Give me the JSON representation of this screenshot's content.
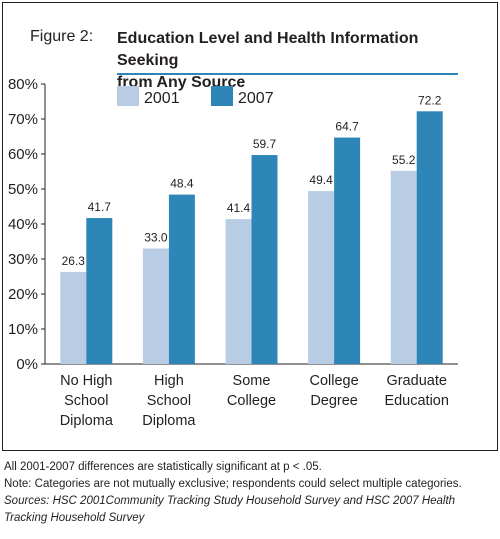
{
  "figure_label": "Figure 2:",
  "title_line1": "Education Level and Health Information Seeking",
  "title_line2": "from Any Source",
  "notes": {
    "line1": "All 2001-2007 differences are statistically significant at p < .05.",
    "line2": "Note: Categories are not mutually exclusive; respondents could select multiple categories.",
    "line3": "Sources: HSC 2001Community Tracking Study Household Survey and HSC 2007 Health",
    "line4": "Tracking Household Survey"
  },
  "chart_data": {
    "type": "bar",
    "title": "Education Level and Health Information Seeking from Any Source",
    "categories": [
      [
        "No High",
        "School",
        "Diploma"
      ],
      [
        "High",
        "School",
        "Diploma"
      ],
      [
        "Some",
        "College"
      ],
      [
        "College",
        "Degree"
      ],
      [
        "Graduate",
        "Education"
      ]
    ],
    "series": [
      {
        "name": "2001",
        "color": "#b8cce4",
        "values": [
          26.3,
          33.0,
          41.4,
          49.4,
          55.2
        ],
        "labels": [
          "26.3",
          "33.0",
          "41.4",
          "49.4",
          "55.2"
        ]
      },
      {
        "name": "2007",
        "color": "#2e86b8",
        "values": [
          41.7,
          48.4,
          59.7,
          64.7,
          72.2
        ],
        "labels": [
          "41.7",
          "48.4",
          "59.7",
          "64.7",
          "72.2"
        ]
      }
    ],
    "yticks": [
      "0%",
      "10%",
      "20%",
      "30%",
      "40%",
      "50%",
      "60%",
      "70%",
      "80%"
    ],
    "ylim": [
      0,
      80
    ],
    "legend_position": "top-left",
    "grid": false
  }
}
